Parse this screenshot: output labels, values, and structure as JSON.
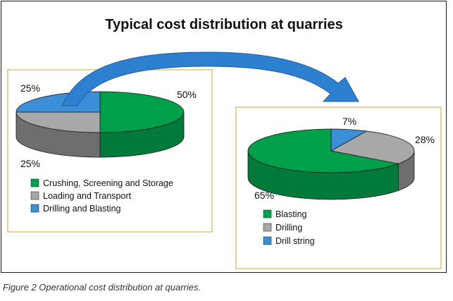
{
  "figure_title": "Typical cost distribution at quarries",
  "caption": "Figure 2  Operational cost distribution at quarries.",
  "colors": {
    "green": "#00a04b",
    "green_side": "#007a3a",
    "grey": "#a8a8a8",
    "grey_side": "#6e6e6e",
    "blue": "#3a8fd6",
    "blue_side": "#2a6aa6",
    "panel_border": "#d9b25a",
    "arrow": "#2d7fd0"
  },
  "chart_data": [
    {
      "type": "pie",
      "title": "",
      "categories": [
        "Crushing, Screening and Storage",
        "Loading and Transport",
        "Drilling and Blasting"
      ],
      "values": [
        50,
        25,
        25
      ],
      "labels": [
        "50%",
        "25%",
        "25%"
      ],
      "legend": [
        "Crushing, Screening and Storage",
        "Loading and Transport",
        "Drilling and Blasting"
      ],
      "colors": [
        "#00a04b",
        "#a8a8a8",
        "#3a8fd6"
      ]
    },
    {
      "type": "pie",
      "title": "",
      "categories": [
        "Blasting",
        "Drilling",
        "Drill string"
      ],
      "values": [
        65,
        28,
        7
      ],
      "labels": [
        "65%",
        "28%",
        "7%"
      ],
      "legend": [
        "Blasting",
        "Drilling",
        "Drill string"
      ],
      "colors": [
        "#00a04b",
        "#a8a8a8",
        "#3a8fd6"
      ]
    }
  ]
}
